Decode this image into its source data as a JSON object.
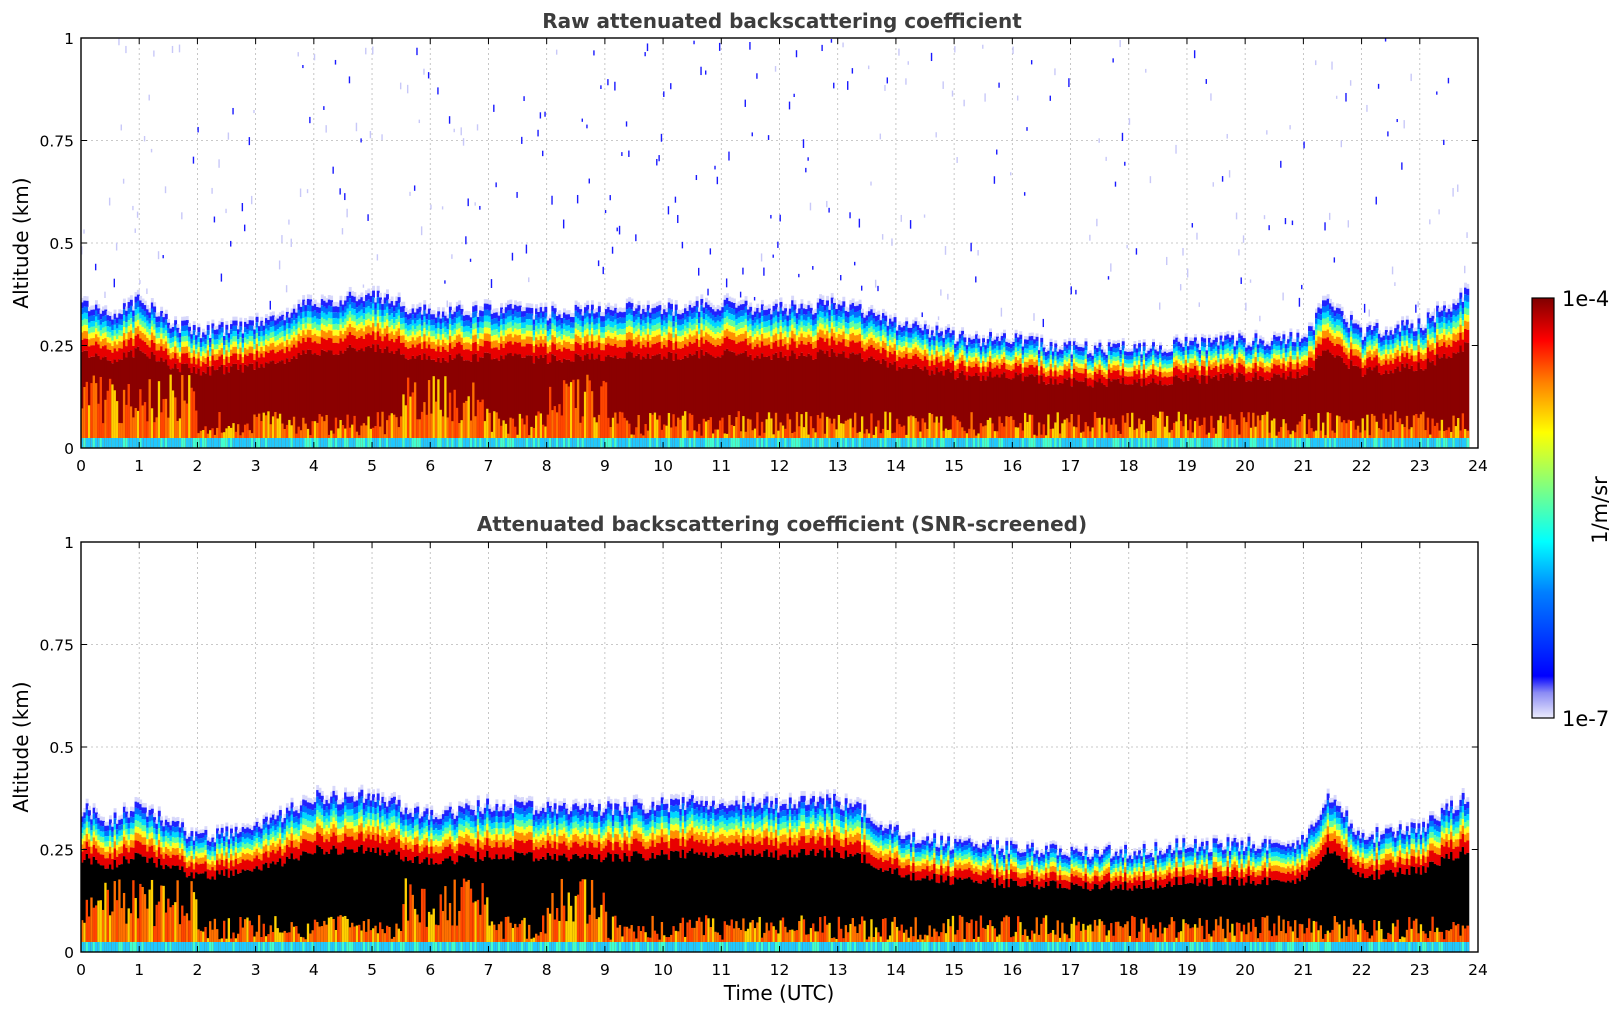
{
  "chart_data": [
    {
      "type": "heatmap",
      "title": "Raw attenuated backscattering coefficient",
      "xlabel": "",
      "ylabel": "Altitude (km)",
      "xlim": [
        0,
        24
      ],
      "ylim": [
        0,
        1
      ],
      "xticks": [
        "0",
        "1",
        "2",
        "3",
        "4",
        "5",
        "6",
        "7",
        "8",
        "9",
        "10",
        "11",
        "12",
        "13",
        "14",
        "15",
        "16",
        "17",
        "18",
        "19",
        "20",
        "21",
        "22",
        "23",
        "24"
      ],
      "yticks": [
        "0",
        "0.25",
        "0.5",
        "0.75",
        "1"
      ],
      "grid": true,
      "data_end_hour": 23.8,
      "noise_above_layer": true,
      "boundary_layer_top_km": {
        "hours": [
          0,
          0.5,
          1,
          1.5,
          2,
          3,
          4,
          5,
          6,
          7,
          8,
          9,
          10,
          11,
          12,
          13,
          13.5,
          14,
          15,
          16,
          17,
          18,
          19,
          20,
          21,
          21.4,
          22,
          23,
          23.8
        ],
        "values": [
          0.36,
          0.33,
          0.37,
          0.32,
          0.29,
          0.31,
          0.37,
          0.38,
          0.34,
          0.35,
          0.34,
          0.35,
          0.35,
          0.36,
          0.35,
          0.36,
          0.34,
          0.31,
          0.28,
          0.27,
          0.25,
          0.25,
          0.26,
          0.27,
          0.28,
          0.37,
          0.29,
          0.31,
          0.39
        ]
      }
    },
    {
      "type": "heatmap",
      "title": "Attenuated backscattering coefficient (SNR-screened)",
      "xlabel": "Time (UTC)",
      "ylabel": "Altitude (km)",
      "xlim": [
        0,
        24
      ],
      "ylim": [
        0,
        1
      ],
      "xticks": [
        "0",
        "1",
        "2",
        "3",
        "4",
        "5",
        "6",
        "7",
        "8",
        "9",
        "10",
        "11",
        "12",
        "13",
        "14",
        "15",
        "16",
        "17",
        "18",
        "19",
        "20",
        "21",
        "22",
        "23",
        "24"
      ],
      "yticks": [
        "0",
        "0.25",
        "0.5",
        "0.75",
        "1"
      ],
      "grid": true,
      "data_end_hour": 23.8,
      "noise_above_layer": false,
      "boundary_layer_top_km": {
        "hours": [
          0,
          0.5,
          1,
          1.5,
          2,
          3,
          4,
          5,
          6,
          7,
          8,
          9,
          10,
          11,
          12,
          13,
          13.5,
          14,
          15,
          16,
          17,
          18,
          19,
          20,
          21,
          21.4,
          22,
          23,
          23.8
        ],
        "values": [
          0.36,
          0.33,
          0.37,
          0.32,
          0.29,
          0.31,
          0.39,
          0.39,
          0.34,
          0.37,
          0.36,
          0.36,
          0.37,
          0.38,
          0.37,
          0.38,
          0.35,
          0.3,
          0.27,
          0.26,
          0.25,
          0.25,
          0.27,
          0.27,
          0.28,
          0.39,
          0.29,
          0.31,
          0.39
        ]
      }
    }
  ],
  "colorbar": {
    "label": "1/m/sr",
    "max_label": "1e-4",
    "min_label": "1e-7",
    "colormap": "jet"
  },
  "colors": {
    "frame": "#000000",
    "title": "#3d3d3d",
    "grid": "#b8b8b8",
    "screened": "#000000"
  }
}
